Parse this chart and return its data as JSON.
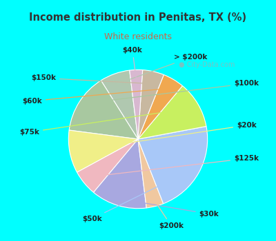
{
  "title": "Income distribution in Penitas, TX (%)",
  "subtitle": "White residents",
  "title_color": "#333333",
  "subtitle_color": "#cc6644",
  "background_cyan": "#00ffff",
  "background_chart": "#d8f0e8",
  "labels": [
    "> $200k",
    "$100k",
    "$20k",
    "$125k",
    "$30k",
    "$200k",
    "$50k",
    "$75k",
    "$60k",
    "$150k",
    "$40k"
  ],
  "values": [
    7,
    14,
    10,
    6,
    13,
    4,
    22,
    11,
    5,
    5,
    3
  ],
  "colors": [
    "#b0c8b0",
    "#a8c8a0",
    "#f0ef88",
    "#f0b8c0",
    "#a8a8e0",
    "#f0c8a0",
    "#a8c8f8",
    "#c8f060",
    "#f0a850",
    "#c8b8a0",
    "#d8b8d0"
  ],
  "startangle": 97
}
